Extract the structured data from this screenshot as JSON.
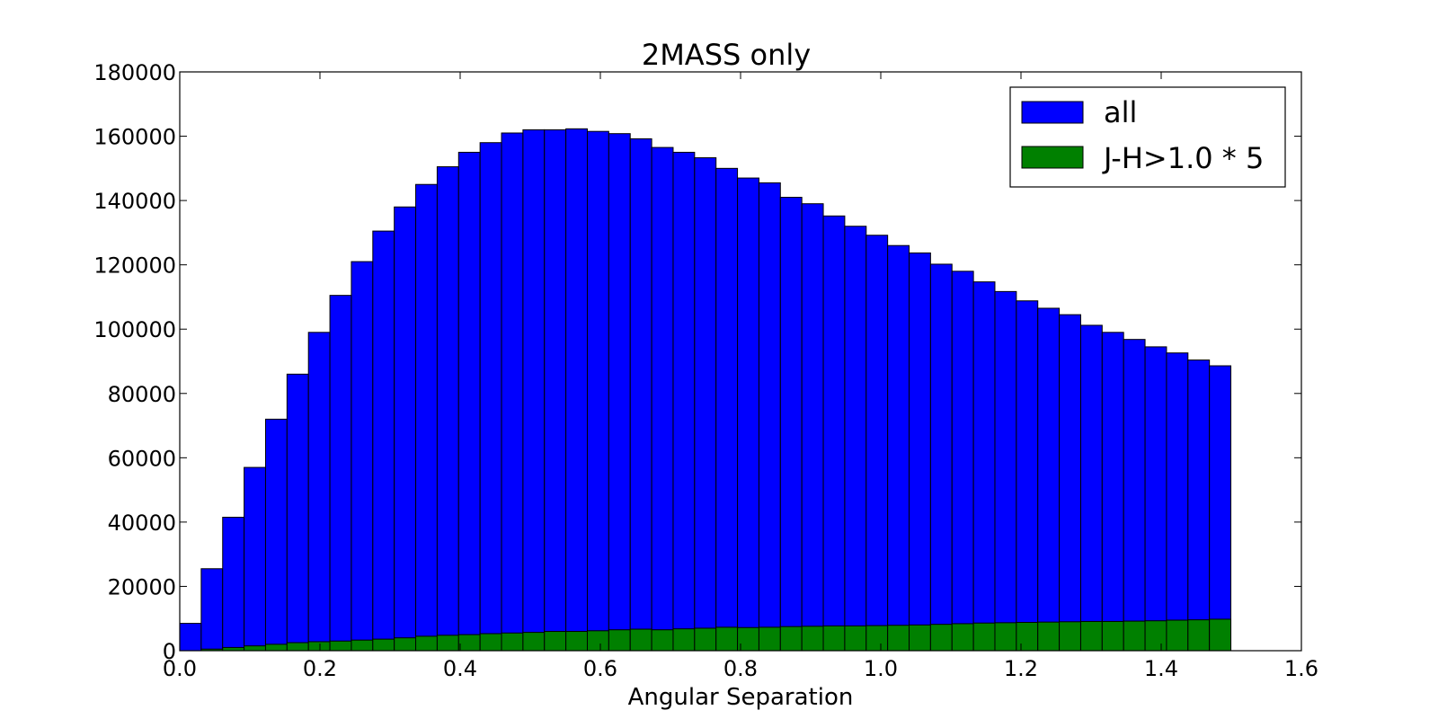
{
  "chart_data": {
    "type": "bar",
    "title": "2MASS only",
    "xlabel": "Angular Separation",
    "ylabel": "",
    "xlim": [
      0.0,
      1.6
    ],
    "ylim": [
      0,
      180000
    ],
    "x_ticks": [
      "0.0",
      "0.2",
      "0.4",
      "0.6",
      "0.8",
      "1.0",
      "1.2",
      "1.4",
      "1.6"
    ],
    "y_ticks": [
      "0",
      "20000",
      "40000",
      "60000",
      "80000",
      "100000",
      "120000",
      "140000",
      "160000",
      "180000"
    ],
    "bin_edges_start": 0.0,
    "bin_width": 0.0306,
    "grid": false,
    "legend_position": "top-right",
    "series": [
      {
        "name": "all",
        "color": "#0000ff",
        "values": [
          8500,
          25500,
          41500,
          57000,
          72000,
          86000,
          99000,
          110500,
          121000,
          130500,
          138000,
          145000,
          150500,
          155000,
          158000,
          161000,
          162000,
          162000,
          162300,
          161500,
          160800,
          159200,
          156500,
          155000,
          153300,
          150000,
          147000,
          145500,
          141000,
          139000,
          135200,
          132000,
          129200,
          126000,
          123700,
          120200,
          118000,
          114700,
          111700,
          108800,
          106500,
          104500,
          101200,
          99000,
          96800,
          94500,
          92600,
          90400,
          88600
        ]
      },
      {
        "name": "J-H>1.0 * 5",
        "color": "#008000",
        "values": [
          0,
          500,
          1000,
          1500,
          2000,
          2500,
          2800,
          3000,
          3300,
          3600,
          4000,
          4500,
          4800,
          5000,
          5300,
          5500,
          5700,
          6000,
          6000,
          6200,
          6500,
          6700,
          6500,
          6800,
          7000,
          7300,
          7200,
          7300,
          7500,
          7600,
          7700,
          7700,
          7800,
          7900,
          8000,
          8200,
          8400,
          8600,
          8700,
          8800,
          8900,
          9000,
          9100,
          9100,
          9200,
          9300,
          9500,
          9600,
          9800
        ]
      }
    ]
  }
}
